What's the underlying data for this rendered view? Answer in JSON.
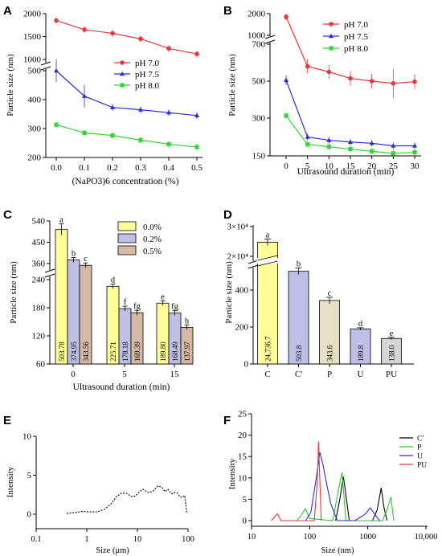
{
  "chart_data": [
    {
      "panel": "A",
      "type": "line",
      "xlabel": "(NaPO3)6 concentration (%)",
      "ylabel": "Particle size (nm)",
      "legend_position": "right-middle",
      "x": [
        0.0,
        0.1,
        0.2,
        0.3,
        0.4,
        0.5
      ],
      "x_tick_labels": [
        "0.0",
        "0.1",
        "0.2",
        "0.3",
        "0.4",
        "0.5"
      ],
      "y_tick_labels": [
        "200",
        "300",
        "400",
        "500",
        "1000",
        "1500",
        "2000"
      ],
      "y_axis_break": [
        560,
        800
      ],
      "series": [
        {
          "name": "pH 7.0",
          "color": "#e8383d",
          "marker": "circle",
          "values": [
            1850,
            1650,
            1570,
            1450,
            1240,
            1120
          ]
        },
        {
          "name": "pH 7.5",
          "color": "#2b2bd9",
          "marker": "triangle",
          "values": [
            500,
            412,
            373,
            365,
            355,
            345
          ]
        },
        {
          "name": "pH 8.0",
          "color": "#33d633",
          "marker": "square",
          "values": [
            313,
            285,
            276,
            260,
            246,
            236
          ]
        }
      ]
    },
    {
      "panel": "B",
      "type": "line",
      "xlabel": "Ultrasound duration (min)",
      "ylabel": "Particle size (nm)",
      "legend_position": "top-right",
      "x": [
        0,
        5,
        10,
        15,
        20,
        25,
        30
      ],
      "x_tick_labels": [
        "0",
        "5",
        "10",
        "15",
        "20",
        "25",
        "30"
      ],
      "y_tick_labels": [
        "150",
        "300",
        "500",
        "700",
        "1000",
        "2000"
      ],
      "y_axis_break": [
        720,
        900
      ],
      "series": [
        {
          "name": "pH 7.0",
          "color": "#e8383d",
          "marker": "circle",
          "values": [
            1850,
            580,
            550,
            515,
            500,
            488,
            497
          ]
        },
        {
          "name": "pH 7.5",
          "color": "#2b2bd9",
          "marker": "triangle",
          "values": [
            505,
            225,
            212,
            205,
            200,
            190,
            190
          ]
        },
        {
          "name": "pH 8.0",
          "color": "#33d633",
          "marker": "square",
          "values": [
            313,
            196,
            186,
            177,
            168,
            160,
            164
          ]
        }
      ]
    },
    {
      "panel": "C",
      "type": "bar",
      "xlabel": "Ultrasound duration (min)",
      "ylabel": "Particle size (nm)",
      "legend_position": "top-right",
      "categories": [
        "0",
        "5",
        "15"
      ],
      "y_tick_labels": [
        "60",
        "120",
        "180",
        "240",
        "360",
        "450",
        "540"
      ],
      "y_axis_break": [
        245,
        300
      ],
      "series": [
        {
          "name": "0.0%",
          "color": "#ffff99",
          "values": [
            503.78,
            225.71,
            189.8
          ],
          "labels": [
            "503.78",
            "225.71",
            "189.80"
          ],
          "letters": [
            "a",
            "d",
            "e"
          ]
        },
        {
          "name": "0.2%",
          "color": "#bfbfe6",
          "values": [
            374.95,
            178.18,
            168.49
          ],
          "labels": [
            "374.95",
            "178.18",
            "168.49"
          ],
          "letters": [
            "b",
            "f",
            "fg"
          ]
        },
        {
          "name": "0.5%",
          "color": "#d5b9a3",
          "values": [
            343.56,
            169.39,
            137.97
          ],
          "labels": [
            "343.56",
            "169.39",
            "137.97"
          ],
          "letters": [
            "c",
            "fg",
            "h"
          ]
        }
      ]
    },
    {
      "panel": "D",
      "type": "bar",
      "xlabel": "",
      "ylabel": "Particle size (nm)",
      "y_tick_labels": [
        "0",
        "200",
        "400",
        "2×10⁴",
        "3×10⁴"
      ],
      "y_axis_break": [
        520,
        18000
      ],
      "categories": [
        "C",
        "C'",
        "P",
        "U",
        "PU"
      ],
      "values": [
        24736.7,
        503.8,
        343.6,
        189.8,
        138.0
      ],
      "labels": [
        "24,736.7",
        "503.8",
        "343.6",
        "189.8",
        "138.0"
      ],
      "letters": [
        "a",
        "b",
        "c",
        "d",
        "e"
      ],
      "colors": [
        "#ffff99",
        "#bfbfe6",
        "#e8e0c5",
        "#bfbfe6",
        "#d5d5d5"
      ]
    },
    {
      "panel": "E",
      "type": "line",
      "xlabel": "Size (μm)",
      "ylabel": "Intensity",
      "x_scale": "log",
      "x_tick_labels": [
        "0.1",
        "1",
        "10",
        "100"
      ],
      "y_tick_labels": [
        "0",
        "5",
        "10"
      ],
      "series": [
        {
          "name": "",
          "color": "#000000",
          "style": "dotted",
          "x": [
            0.4,
            0.55,
            0.8,
            1.2,
            1.6,
            2.2,
            3,
            3.8,
            4.8,
            6,
            7.5,
            9,
            11,
            13,
            16,
            20,
            25,
            30,
            35,
            40,
            48,
            55,
            62,
            70,
            78,
            86,
            95
          ],
          "values": [
            0.1,
            0.2,
            0.35,
            0.3,
            0.3,
            0.6,
            1.3,
            2.2,
            2.7,
            2.7,
            2.3,
            2.3,
            2.9,
            3.2,
            2.8,
            2.9,
            3.6,
            3.5,
            2.9,
            3.2,
            2.6,
            2.8,
            2.7,
            2.2,
            2.2,
            2.4,
            0.1
          ]
        }
      ]
    },
    {
      "panel": "F",
      "type": "line",
      "xlabel": "Size (nm)",
      "ylabel": "Intensity",
      "x_scale": "log",
      "legend_position": "top-right",
      "x_tick_labels": [
        "10",
        "100",
        "1000",
        "10,000"
      ],
      "y_tick_labels": [
        "0",
        "5",
        "10",
        "15",
        "20",
        "25"
      ],
      "series": [
        {
          "name": "C'",
          "color": "#000000",
          "x": [
            280,
            330,
            380,
            430,
            480,
            550,
            1200,
            1450,
            1700,
            1900,
            2150
          ],
          "values": [
            0,
            5,
            10.3,
            5,
            0,
            0,
            0,
            2.5,
            7.7,
            3,
            0
          ]
        },
        {
          "name": "P",
          "color": "#33c233",
          "x": [
            60,
            72,
            84,
            100,
            250,
            310,
            360,
            420,
            1800,
            2200,
            2500,
            2800
          ],
          "values": [
            0,
            1.3,
            2.8,
            0.5,
            0,
            7,
            11.3,
            0,
            0,
            3,
            5.5,
            0
          ]
        },
        {
          "name": "U",
          "color": "#2b2bd9",
          "x": [
            85,
            105,
            130,
            150,
            170,
            200,
            230,
            270,
            300,
            600,
            900,
            1100,
            1400,
            1600
          ],
          "values": [
            0,
            2,
            10,
            16,
            13,
            8,
            4,
            1.5,
            0,
            0,
            1.5,
            3,
            1,
            0
          ]
        },
        {
          "name": "PU",
          "color": "#e8383d",
          "x": [
            22,
            26,
            28,
            32,
            120,
            135,
            142,
            150,
            158
          ],
          "values": [
            0,
            1.2,
            1.6,
            0,
            0,
            9,
            18.5,
            9,
            0
          ]
        }
      ]
    }
  ]
}
